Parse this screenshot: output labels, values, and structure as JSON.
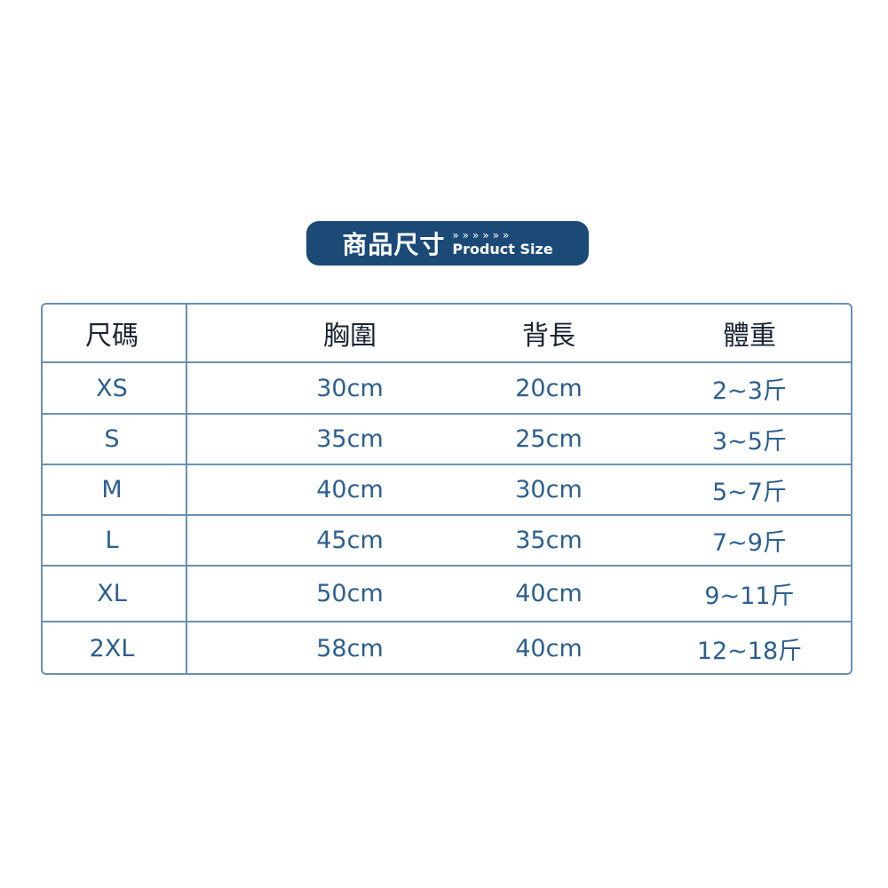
{
  "banner": {
    "title_zh": "商品尺寸",
    "arrows": "»»»»»»",
    "title_en": "Product Size"
  },
  "table": {
    "headers": [
      "尺碼",
      "胸圍",
      "背長",
      "體重"
    ],
    "rows": [
      [
        "XS",
        "30cm",
        "20cm",
        "2~3斤"
      ],
      [
        "S",
        "35cm",
        "25cm",
        "3~5斤"
      ],
      [
        "M",
        "40cm",
        "30cm",
        "5~7斤"
      ],
      [
        "L",
        "45cm",
        "35cm",
        "7~9斤"
      ],
      [
        "XL",
        "50cm",
        "40cm",
        "9~11斤"
      ],
      [
        "2XL",
        "58cm",
        "40cm",
        "12~18斤"
      ]
    ]
  }
}
